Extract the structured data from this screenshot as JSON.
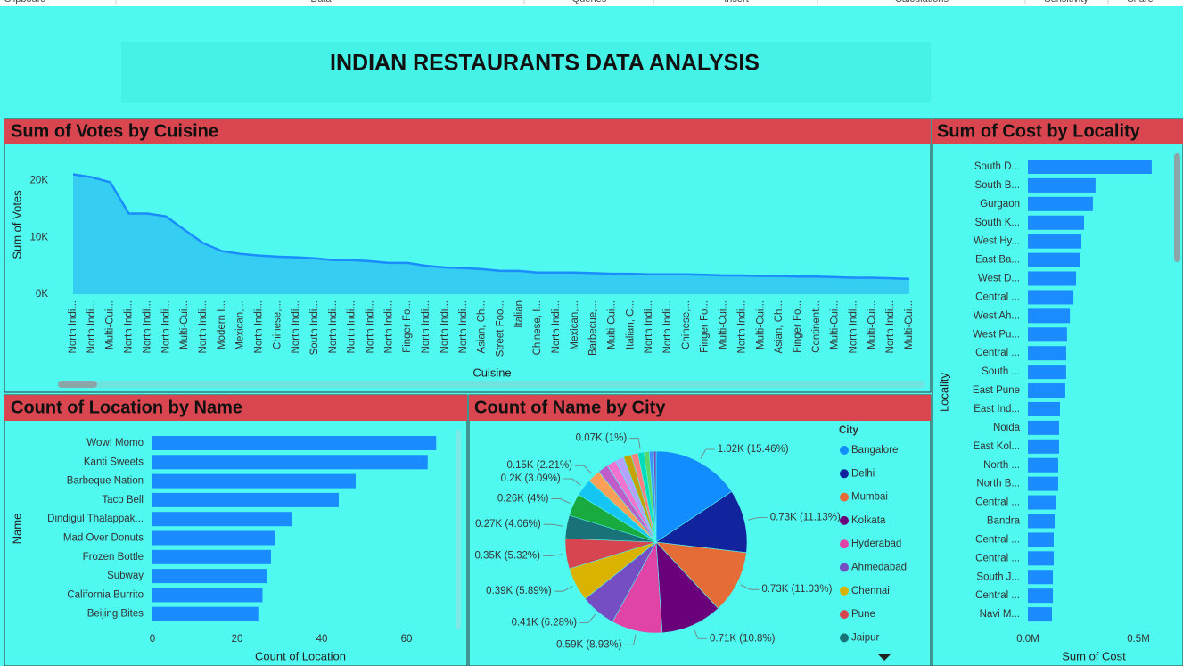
{
  "ribbon": [
    "Clipboard",
    "Data",
    "Queries",
    "Insert",
    "Calculations",
    "Sensitivity",
    "Share"
  ],
  "title": "INDIAN RESTAURANTS DATA ANALYSIS",
  "chart_data": [
    {
      "type": "area",
      "title": "Sum of Votes by Cuisine",
      "x_label": "Cuisine",
      "y_label": "Sum of Votes",
      "categories": [
        "North Indi...",
        "North Indi...",
        "Multi-Cui...",
        "North Indi...",
        "North Indi...",
        "North Indi...",
        "Multi-Cui...",
        "North Indi...",
        "Modern I...",
        "Mexican,...",
        "North Indi...",
        "Chinese,...",
        "North Indi...",
        "South Indi...",
        "North Indi...",
        "North Indi...",
        "North Indi...",
        "North Indi...",
        "Finger Fo...",
        "North Indi...",
        "North Indi...",
        "North Indi...",
        "Asian, Ch...",
        "Street Foo...",
        "Italian",
        "Chinese, I...",
        "North Indi...",
        "Mexican,...",
        "Barbecue,...",
        "Multi-Cui...",
        "Italian, C...",
        "North Indi...",
        "North Indi...",
        "Chinese,...",
        "Finger Fo...",
        "Multi-Cui...",
        "North Indi...",
        "Multi-Cui...",
        "Asian, Ch...",
        "Finger Fo...",
        "Continent...",
        "Multi-Cui...",
        "North Indi...",
        "Multi-Cui...",
        "North Indi...",
        "Multi-Cui..."
      ],
      "values": [
        21100,
        20600,
        19700,
        14200,
        14200,
        13700,
        11300,
        9000,
        7600,
        7100,
        6800,
        6600,
        6500,
        6300,
        6000,
        6000,
        5800,
        5500,
        5500,
        5000,
        4700,
        4600,
        4400,
        4100,
        4100,
        3800,
        3800,
        3800,
        3700,
        3600,
        3600,
        3500,
        3500,
        3500,
        3400,
        3300,
        3300,
        3200,
        3200,
        3100,
        3100,
        3000,
        2900,
        2900,
        2800,
        2700
      ],
      "ylim": [
        0,
        24000
      ],
      "yticks": [
        {
          "value": 0,
          "label": "0K"
        },
        {
          "value": 10000,
          "label": "10K"
        },
        {
          "value": 20000,
          "label": "20K"
        }
      ],
      "grid": false,
      "color": "#1a8cff",
      "fill": "#36cdf2"
    },
    {
      "type": "bar",
      "orientation": "horizontal",
      "title": "Sum of Cost by Locality",
      "x_label": "Sum of Cost",
      "y_label": "Locality",
      "categories": [
        "South D...",
        "South B...",
        "Gurgaon",
        "South K...",
        "West Hy...",
        "East Ba...",
        "West D...",
        "Central ...",
        "West Ah...",
        "West Pu...",
        "Central ...",
        "South ...",
        "East Pune",
        "East Ind...",
        "Noida",
        "East Kol...",
        "North ...",
        "North B...",
        "Central ...",
        "Bandra",
        "Central ...",
        "Central ...",
        "South J...",
        "Central ...",
        "Navi M..."
      ],
      "values": [
        560000,
        306000,
        294000,
        254000,
        242000,
        234000,
        218000,
        206000,
        190000,
        177000,
        173000,
        173000,
        169000,
        145000,
        141000,
        141000,
        137000,
        137000,
        129000,
        121000,
        117000,
        117000,
        113000,
        113000,
        109000
      ],
      "xlim": [
        0,
        600000
      ],
      "xticks": [
        {
          "value": 0,
          "label": "0.0M"
        },
        {
          "value": 500000,
          "label": "0.5M"
        }
      ],
      "grid": false,
      "color": "#1a8cff"
    },
    {
      "type": "bar",
      "orientation": "horizontal",
      "title": "Count of Location by Name",
      "x_label": "Count of Location",
      "y_label": "Name",
      "categories": [
        "Wow! Momo",
        "Kanti Sweets",
        "Barbeque Nation",
        "Taco Bell",
        "Dindigul Thalappak...",
        "Mad Over Donuts",
        "Frozen Bottle",
        "Subway",
        "California Burrito",
        "Beijing Bites"
      ],
      "values": [
        67,
        65,
        48,
        44,
        33,
        29,
        28,
        27,
        26,
        25
      ],
      "xlim": [
        0,
        72
      ],
      "xticks": [
        0,
        20,
        40,
        60
      ],
      "grid": false,
      "color": "#1a8cff"
    },
    {
      "type": "pie",
      "title": "Count of Name by City",
      "legend_title": "City",
      "categories": [
        "Bangalore",
        "Delhi",
        "Mumbai",
        "Kolkata",
        "Hyderabad",
        "Ahmedabad",
        "Chennai",
        "Pune",
        "Jaipur",
        null,
        null,
        null,
        null,
        null,
        null,
        null,
        null,
        null,
        null,
        null,
        null
      ],
      "values": [
        1020,
        730,
        730,
        710,
        590,
        410,
        390,
        350,
        270,
        260,
        200,
        150,
        120,
        110,
        100,
        90,
        80,
        70,
        60,
        50,
        30
      ],
      "value_labels": [
        "1.02K (15.46%)",
        "0.73K (11.13%)",
        "0.73K (11.03%)",
        "0.71K (10.8%)",
        "0.59K (8.93%)",
        "0.41K (6.28%)",
        "0.39K (5.89%)",
        "0.35K (5.32%)",
        "0.27K (4.06%)",
        "0.26K (4%)",
        "0.2K (3.09%)",
        "0.15K (2.21%)",
        null,
        null,
        null,
        null,
        null,
        "0.07K (1%)",
        null,
        null,
        null
      ],
      "colors": [
        "#118dff",
        "#12239e",
        "#e66c37",
        "#6b007b",
        "#e044a7",
        "#744ec2",
        "#d9b300",
        "#d64550",
        "#197278",
        "#1aab40",
        "#15c6f4",
        "#ffa058",
        "#be5dc9",
        "#f472d0",
        "#b5a1ff",
        "#c4a200",
        "#ff8080",
        "#00dbbc",
        "#5bd667",
        "#4092ff",
        "#744ec2"
      ]
    }
  ]
}
